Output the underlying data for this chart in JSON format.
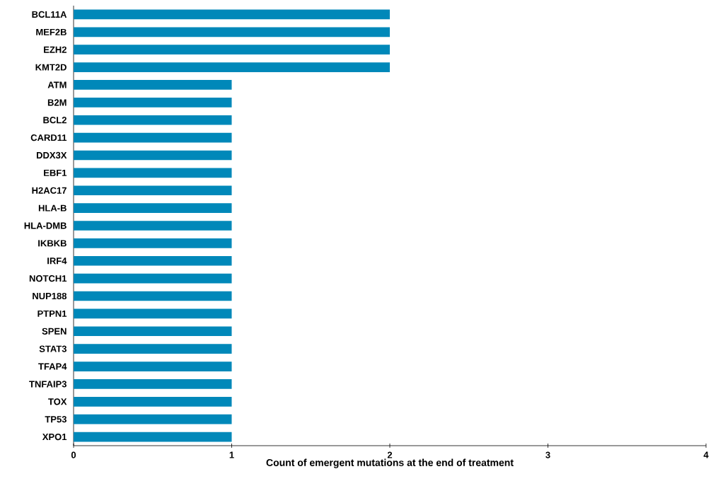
{
  "chart_data": {
    "type": "bar",
    "orientation": "horizontal",
    "xlabel": "Count of emergent mutations at the end of treatment",
    "categories": [
      "BCL11A",
      "MEF2B",
      "EZH2",
      "KMT2D",
      "ATM",
      "B2M",
      "BCL2",
      "CARD11",
      "DDX3X",
      "EBF1",
      "H2AC17",
      "HLA-B",
      "HLA-DMB",
      "IKBKB",
      "IRF4",
      "NOTCH1",
      "NUP188",
      "PTPN1",
      "SPEN",
      "STAT3",
      "TFAP4",
      "TNFAIP3",
      "TOX",
      "TP53",
      "XPO1"
    ],
    "values": [
      2,
      2,
      2,
      2,
      1,
      1,
      1,
      1,
      1,
      1,
      1,
      1,
      1,
      1,
      1,
      1,
      1,
      1,
      1,
      1,
      1,
      1,
      1,
      1,
      1
    ],
    "color": "#0088b9",
    "xlim": [
      0,
      4
    ],
    "xticks": [
      0,
      1,
      2,
      3,
      4
    ]
  }
}
